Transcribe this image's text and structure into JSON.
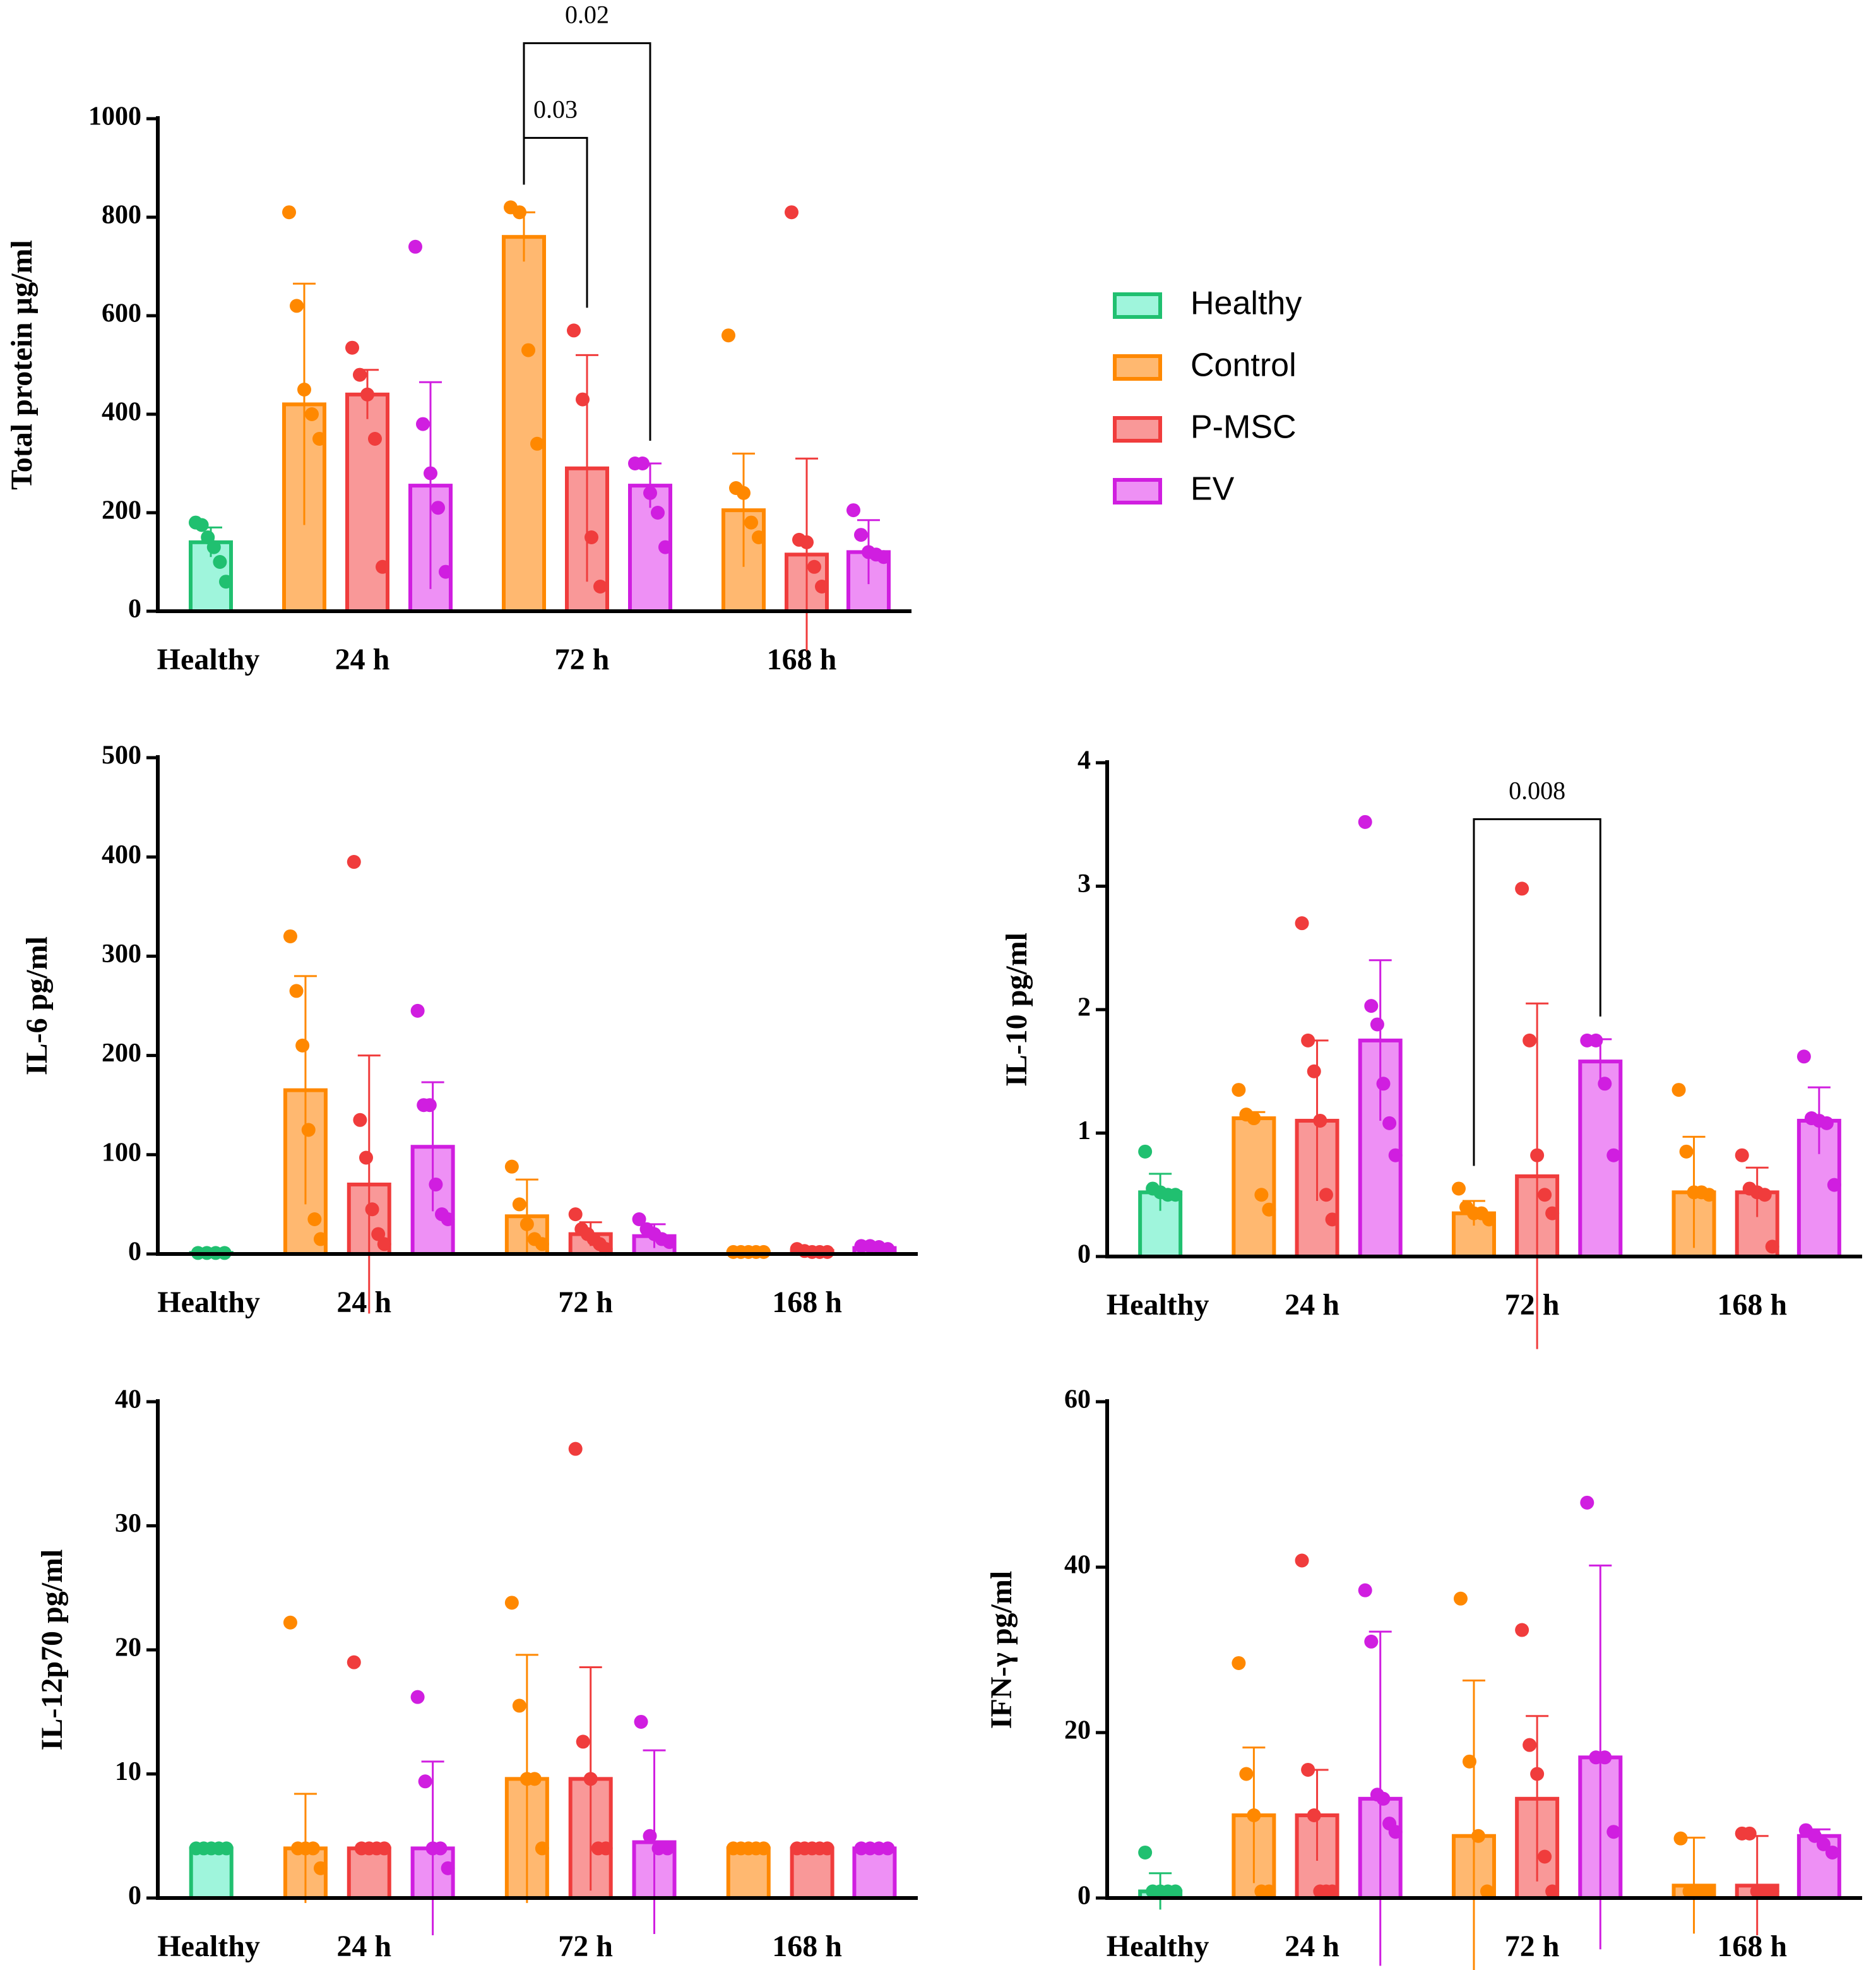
{
  "chart_data": [
    {
      "type": "bar",
      "ylabel": "Total protein µg/ml",
      "categories": [
        "Healthy",
        "24 h",
        "72 h",
        "168 h"
      ],
      "ylim": [
        0,
        1000
      ],
      "yticks": [
        0,
        200,
        400,
        600,
        800,
        1000
      ],
      "legend": "right",
      "series": [
        {
          "name": "Healthy",
          "color": "#20c070",
          "fill": "#9ff5dc",
          "values": [
            140,
            null,
            null,
            null
          ],
          "errors": [
            30,
            null,
            null,
            null
          ],
          "points": [
            [
              180,
              175,
              150,
              130,
              100,
              60
            ],
            null,
            null,
            null
          ]
        },
        {
          "name": "Control",
          "color": "#ff8800",
          "fill": "#ffb870",
          "values": [
            null,
            420,
            760,
            205
          ],
          "errors": [
            null,
            245,
            50,
            115
          ],
          "points": [
            null,
            [
              810,
              620,
              450,
              400,
              350
            ],
            [
              820,
              810,
              530,
              340
            ],
            [
              560,
              250,
              240,
              180,
              150
            ]
          ]
        },
        {
          "name": "P-MSC",
          "color": "#f03c3c",
          "fill": "#f99898",
          "values": [
            null,
            440,
            290,
            115
          ],
          "errors": [
            null,
            50,
            230,
            195
          ],
          "points": [
            null,
            [
              535,
              480,
              440,
              350,
              90
            ],
            [
              570,
              430,
              150,
              50
            ],
            [
              810,
              145,
              140,
              90,
              50
            ]
          ]
        },
        {
          "name": "EV",
          "color": "#d01ee0",
          "fill": "#ee90f5",
          "values": [
            null,
            255,
            255,
            120
          ],
          "errors": [
            null,
            210,
            45,
            65
          ],
          "points": [
            null,
            [
              740,
              380,
              280,
              210,
              80
            ],
            [
              300,
              300,
              240,
              200,
              130
            ],
            [
              205,
              155,
              120,
              115,
              110
            ]
          ]
        }
      ],
      "annotations": [
        {
          "label": "0.03",
          "category": "72 h",
          "from": "Control",
          "to": "P-MSC"
        },
        {
          "label": "0.02",
          "category": "72 h",
          "from": "Control",
          "to": "EV"
        }
      ]
    },
    {
      "type": "bar",
      "ylabel": "IL-6 pg/ml",
      "categories": [
        "Healthy",
        "24 h",
        "72 h",
        "168 h"
      ],
      "ylim": [
        0,
        500
      ],
      "yticks": [
        0,
        100,
        200,
        300,
        400,
        500
      ],
      "series": [
        {
          "name": "Healthy",
          "color": "#20c070",
          "fill": "#9ff5dc",
          "values": [
            1,
            null,
            null,
            null
          ],
          "errors": [
            0,
            null,
            null,
            null
          ],
          "points": [
            [
              1,
              1,
              1,
              1
            ],
            null,
            null,
            null
          ]
        },
        {
          "name": "Control",
          "color": "#ff8800",
          "fill": "#ffb870",
          "values": [
            null,
            165,
            38,
            2
          ],
          "errors": [
            null,
            115,
            37,
            1
          ],
          "points": [
            null,
            [
              320,
              265,
              210,
              125,
              35,
              15
            ],
            [
              88,
              50,
              30,
              15,
              10
            ],
            [
              2,
              2,
              2,
              2,
              2
            ]
          ]
        },
        {
          "name": "P-MSC",
          "color": "#f03c3c",
          "fill": "#f99898",
          "values": [
            null,
            70,
            20,
            3
          ],
          "errors": [
            null,
            130,
            12,
            2
          ],
          "points": [
            null,
            [
              395,
              135,
              97,
              45,
              20,
              10
            ],
            [
              40,
              25,
              20,
              15,
              10,
              5
            ],
            [
              5,
              3,
              2,
              2,
              2
            ]
          ]
        },
        {
          "name": "EV",
          "color": "#d01ee0",
          "fill": "#ee90f5",
          "values": [
            null,
            108,
            18,
            6
          ],
          "errors": [
            null,
            65,
            12,
            2
          ],
          "points": [
            null,
            [
              245,
              150,
              150,
              70,
              40,
              35
            ],
            [
              35,
              25,
              20,
              15,
              12
            ],
            [
              8,
              8,
              7,
              5
            ]
          ]
        }
      ],
      "annotations": []
    },
    {
      "type": "bar",
      "ylabel": "IL-10 pg/ml",
      "categories": [
        "Healthy",
        "24 h",
        "72 h",
        "168 h"
      ],
      "ylim": [
        0,
        4
      ],
      "yticks": [
        0,
        1,
        2,
        3,
        4
      ],
      "series": [
        {
          "name": "Healthy",
          "color": "#20c070",
          "fill": "#9ff5dc",
          "values": [
            0.52,
            null,
            null,
            null
          ],
          "errors": [
            0.15,
            null,
            null,
            null
          ],
          "points": [
            [
              0.85,
              0.55,
              0.52,
              0.5,
              0.5
            ],
            null,
            null,
            null
          ]
        },
        {
          "name": "Control",
          "color": "#ff8800",
          "fill": "#ffb870",
          "values": [
            null,
            1.12,
            0.35,
            0.52
          ],
          "errors": [
            null,
            0.05,
            0.1,
            0.45
          ],
          "points": [
            null,
            [
              1.35,
              1.15,
              1.12,
              0.5,
              0.38
            ],
            [
              0.55,
              0.4,
              0.35,
              0.35,
              0.3
            ],
            [
              1.35,
              0.85,
              0.52,
              0.52,
              0.5
            ]
          ]
        },
        {
          "name": "P-MSC",
          "color": "#f03c3c",
          "fill": "#f99898",
          "values": [
            null,
            1.1,
            0.65,
            0.52
          ],
          "errors": [
            null,
            0.65,
            1.4,
            0.2
          ],
          "points": [
            null,
            [
              2.7,
              1.75,
              1.5,
              1.1,
              0.5,
              0.3
            ],
            [
              2.98,
              1.75,
              0.82,
              0.5,
              0.35
            ],
            [
              0.82,
              0.55,
              0.52,
              0.5,
              0.08
            ]
          ]
        },
        {
          "name": "EV",
          "color": "#d01ee0",
          "fill": "#ee90f5",
          "values": [
            null,
            1.75,
            1.58,
            1.1
          ],
          "errors": [
            null,
            0.65,
            0.18,
            0.27
          ],
          "points": [
            null,
            [
              3.52,
              2.03,
              1.88,
              1.4,
              1.08,
              0.82
            ],
            [
              1.75,
              1.75,
              1.4,
              0.82
            ],
            [
              1.62,
              1.12,
              1.1,
              1.08,
              0.58
            ]
          ]
        }
      ],
      "annotations": [
        {
          "label": "0.008",
          "category": "72 h",
          "from": "Control",
          "to": "EV"
        }
      ]
    },
    {
      "type": "bar",
      "ylabel": "IL-12p70 pg/ml",
      "categories": [
        "Healthy",
        "24 h",
        "72 h",
        "168 h"
      ],
      "ylim": [
        0,
        40
      ],
      "yticks": [
        0,
        10,
        20,
        30,
        40
      ],
      "series": [
        {
          "name": "Healthy",
          "color": "#20c070",
          "fill": "#9ff5dc",
          "values": [
            4,
            null,
            null,
            null
          ],
          "errors": [
            0,
            null,
            null,
            null
          ],
          "points": [
            [
              4,
              4,
              4,
              4,
              4
            ],
            null,
            null,
            null
          ]
        },
        {
          "name": "Control",
          "color": "#ff8800",
          "fill": "#ffb870",
          "values": [
            null,
            4,
            9.6,
            4
          ],
          "errors": [
            null,
            4.4,
            10,
            0
          ],
          "points": [
            null,
            [
              22.2,
              4,
              4,
              4,
              2.4
            ],
            [
              23.8,
              15.5,
              9.6,
              9.6,
              4
            ],
            [
              4,
              4,
              4,
              4,
              4
            ]
          ]
        },
        {
          "name": "P-MSC",
          "color": "#f03c3c",
          "fill": "#f99898",
          "values": [
            null,
            4,
            9.6,
            4
          ],
          "errors": [
            null,
            0,
            9,
            0
          ],
          "points": [
            null,
            [
              19,
              4,
              4,
              4,
              4
            ],
            [
              36.2,
              12.6,
              9.6,
              4,
              4
            ],
            [
              4,
              4,
              4,
              4,
              4
            ]
          ]
        },
        {
          "name": "EV",
          "color": "#d01ee0",
          "fill": "#ee90f5",
          "values": [
            null,
            4,
            4.5,
            4
          ],
          "errors": [
            null,
            7,
            7.4,
            0
          ],
          "points": [
            null,
            [
              16.2,
              9.4,
              4,
              4,
              2.4
            ],
            [
              14.2,
              5,
              4,
              4
            ],
            [
              4,
              4,
              4,
              4
            ]
          ]
        }
      ],
      "annotations": []
    },
    {
      "type": "bar",
      "ylabel": "IFN-γ pg/ml",
      "categories": [
        "Healthy",
        "24 h",
        "72 h",
        "168 h"
      ],
      "ylim": [
        0,
        60
      ],
      "yticks": [
        0,
        20,
        40,
        60
      ],
      "series": [
        {
          "name": "Healthy",
          "color": "#20c070",
          "fill": "#9ff5dc",
          "values": [
            0.8,
            null,
            null,
            null
          ],
          "errors": [
            2.2,
            null,
            null,
            null
          ],
          "points": [
            [
              5.5,
              0.8,
              0.8,
              0.8,
              0.8
            ],
            null,
            null,
            null
          ]
        },
        {
          "name": "Control",
          "color": "#ff8800",
          "fill": "#ffb870",
          "values": [
            null,
            10,
            7.5,
            1.5
          ],
          "errors": [
            null,
            8.2,
            18.8,
            5.8
          ],
          "points": [
            null,
            [
              28.4,
              15,
              10,
              0.8,
              0.8
            ],
            [
              36.2,
              16.5,
              7.5,
              0.8
            ],
            [
              7.2,
              0.8,
              0.8,
              0.8
            ]
          ]
        },
        {
          "name": "P-MSC",
          "color": "#f03c3c",
          "fill": "#f99898",
          "values": [
            null,
            10,
            12,
            1.5
          ],
          "errors": [
            null,
            5.5,
            10,
            6
          ],
          "points": [
            null,
            [
              40.8,
              15.5,
              10,
              0.8,
              0.8,
              0.8
            ],
            [
              32.4,
              18.5,
              15,
              5,
              0.8
            ],
            [
              7.8,
              7.8,
              0.8,
              0.8,
              0.8
            ]
          ]
        },
        {
          "name": "EV",
          "color": "#d01ee0",
          "fill": "#ee90f5",
          "values": [
            null,
            12,
            17,
            7.5
          ],
          "errors": [
            null,
            20.2,
            23.2,
            0.8
          ],
          "points": [
            null,
            [
              37.2,
              31,
              12.5,
              12,
              9,
              8
            ],
            [
              47.8,
              17,
              17,
              8
            ],
            [
              8.2,
              7.5,
              6.5,
              5.5
            ]
          ]
        }
      ],
      "annotations": []
    }
  ]
}
